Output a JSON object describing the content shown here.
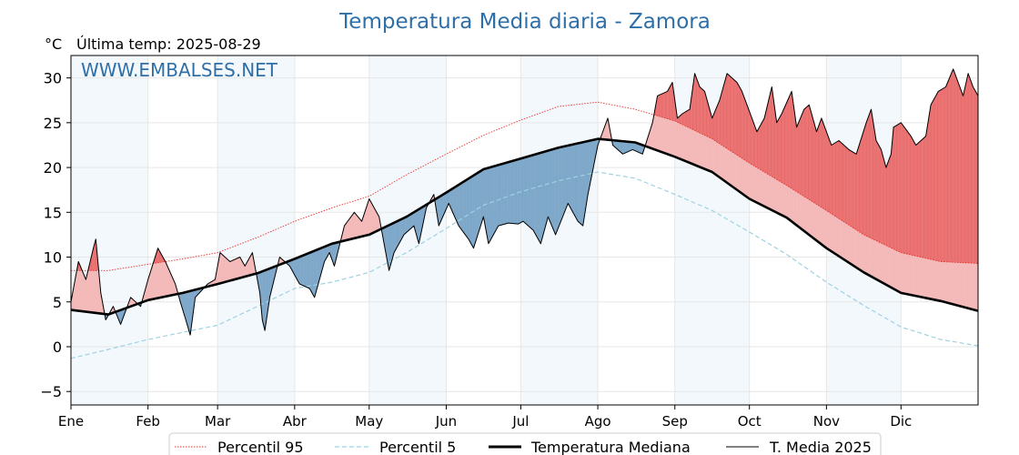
{
  "chart_data": {
    "type": "line",
    "title": "Temperatura Media diaria - Zamora",
    "unit_label": "°C",
    "last_temp_label": "Última temp: 2025-08-29",
    "watermark": "WWW.EMBALSES.NET",
    "x_axis": {
      "range_days": [
        0,
        365
      ],
      "months": [
        "Ene",
        "Feb",
        "Mar",
        "Abr",
        "May",
        "Jun",
        "Jul",
        "Ago",
        "Sep",
        "Oct",
        "Nov",
        "Dic"
      ],
      "month_start_days": [
        0,
        31,
        59,
        90,
        120,
        151,
        181,
        212,
        243,
        273,
        304,
        334
      ]
    },
    "y_axis": {
      "range": [
        -6.5,
        32.5
      ],
      "ticks": [
        "−5",
        "0",
        "5",
        "10",
        "15",
        "20",
        "25",
        "30"
      ],
      "tick_values": [
        -5,
        0,
        5,
        10,
        15,
        20,
        25,
        30
      ]
    },
    "grid": true,
    "legend_placement": "bottom-center",
    "series": [
      {
        "name": "Percentil 95",
        "color": "#e8312a",
        "style": "dotted",
        "points": [
          [
            0,
            8.5
          ],
          [
            15,
            8.5
          ],
          [
            31,
            9.2
          ],
          [
            45,
            9.8
          ],
          [
            59,
            10.5
          ],
          [
            75,
            12.2
          ],
          [
            90,
            14.0
          ],
          [
            105,
            15.5
          ],
          [
            120,
            16.8
          ],
          [
            135,
            19.2
          ],
          [
            151,
            21.5
          ],
          [
            166,
            23.6
          ],
          [
            181,
            25.3
          ],
          [
            196,
            26.8
          ],
          [
            212,
            27.3
          ],
          [
            227,
            26.5
          ],
          [
            243,
            25.2
          ],
          [
            258,
            23.2
          ],
          [
            273,
            20.5
          ],
          [
            288,
            18.0
          ],
          [
            304,
            15.2
          ],
          [
            319,
            12.5
          ],
          [
            334,
            10.5
          ],
          [
            350,
            9.5
          ],
          [
            365,
            9.3
          ]
        ]
      },
      {
        "name": "Percentil 5",
        "color": "#9dd2e1",
        "style": "dashed",
        "points": [
          [
            0,
            -1.3
          ],
          [
            15,
            -0.3
          ],
          [
            31,
            0.8
          ],
          [
            45,
            1.6
          ],
          [
            59,
            2.4
          ],
          [
            75,
            4.5
          ],
          [
            90,
            6.5
          ],
          [
            105,
            7.2
          ],
          [
            120,
            8.3
          ],
          [
            135,
            10.5
          ],
          [
            151,
            13.2
          ],
          [
            166,
            15.8
          ],
          [
            181,
            17.3
          ],
          [
            196,
            18.5
          ],
          [
            212,
            19.5
          ],
          [
            227,
            18.8
          ],
          [
            243,
            17.0
          ],
          [
            258,
            15.2
          ],
          [
            273,
            12.8
          ],
          [
            288,
            10.3
          ],
          [
            304,
            7.2
          ],
          [
            319,
            4.6
          ],
          [
            334,
            2.2
          ],
          [
            350,
            0.8
          ],
          [
            365,
            0.1
          ]
        ]
      },
      {
        "name": "Temperatura Mediana",
        "color": "#000000",
        "style": "solid-thick",
        "points": [
          [
            0,
            4.1
          ],
          [
            15,
            3.6
          ],
          [
            31,
            5.2
          ],
          [
            45,
            6.0
          ],
          [
            59,
            7.0
          ],
          [
            75,
            8.2
          ],
          [
            90,
            9.8
          ],
          [
            105,
            11.5
          ],
          [
            120,
            12.5
          ],
          [
            135,
            14.5
          ],
          [
            151,
            17.2
          ],
          [
            166,
            19.8
          ],
          [
            181,
            21.0
          ],
          [
            196,
            22.2
          ],
          [
            212,
            23.2
          ],
          [
            227,
            22.8
          ],
          [
            243,
            21.2
          ],
          [
            258,
            19.5
          ],
          [
            273,
            16.5
          ],
          [
            288,
            14.4
          ],
          [
            304,
            11.0
          ],
          [
            319,
            8.3
          ],
          [
            334,
            6.0
          ],
          [
            350,
            5.1
          ],
          [
            365,
            4.0
          ]
        ]
      },
      {
        "name": "T. Media 2025",
        "color": "#000000",
        "style": "solid-thin",
        "points": [
          [
            0,
            5.0
          ],
          [
            3,
            9.5
          ],
          [
            6,
            7.5
          ],
          [
            9,
            11.0
          ],
          [
            10,
            12.0
          ],
          [
            12,
            6.0
          ],
          [
            14,
            3.0
          ],
          [
            17,
            4.5
          ],
          [
            20,
            2.5
          ],
          [
            24,
            5.5
          ],
          [
            28,
            4.5
          ],
          [
            31,
            7.5
          ],
          [
            35,
            11.0
          ],
          [
            38,
            9.5
          ],
          [
            42,
            7.0
          ],
          [
            44,
            5.0
          ],
          [
            46,
            3.2
          ],
          [
            48,
            1.3
          ],
          [
            50,
            5.5
          ],
          [
            55,
            7.0
          ],
          [
            58,
            7.5
          ],
          [
            60,
            10.5
          ],
          [
            64,
            9.5
          ],
          [
            68,
            10.0
          ],
          [
            70,
            9.0
          ],
          [
            73,
            10.5
          ],
          [
            76,
            6.0
          ],
          [
            77,
            3.0
          ],
          [
            78,
            1.8
          ],
          [
            80,
            5.5
          ],
          [
            84,
            10.0
          ],
          [
            88,
            9.0
          ],
          [
            92,
            7.0
          ],
          [
            96,
            6.5
          ],
          [
            98,
            5.5
          ],
          [
            102,
            9.5
          ],
          [
            104,
            10.5
          ],
          [
            106,
            9.0
          ],
          [
            110,
            13.5
          ],
          [
            114,
            15.0
          ],
          [
            117,
            14.0
          ],
          [
            120,
            16.5
          ],
          [
            124,
            14.5
          ],
          [
            128,
            8.5
          ],
          [
            130,
            10.5
          ],
          [
            134,
            12.5
          ],
          [
            138,
            13.5
          ],
          [
            140,
            11.5
          ],
          [
            143,
            15.5
          ],
          [
            146,
            17.0
          ],
          [
            148,
            13.5
          ],
          [
            152,
            16.0
          ],
          [
            156,
            13.5
          ],
          [
            160,
            12.0
          ],
          [
            162,
            11.0
          ],
          [
            166,
            14.5
          ],
          [
            168,
            11.5
          ],
          [
            172,
            13.5
          ],
          [
            176,
            13.8
          ],
          [
            180,
            13.7
          ],
          [
            182,
            14.0
          ],
          [
            186,
            13.0
          ],
          [
            189,
            11.5
          ],
          [
            192,
            14.5
          ],
          [
            195,
            12.5
          ],
          [
            200,
            16.0
          ],
          [
            204,
            14.0
          ],
          [
            206,
            13.5
          ],
          [
            208,
            17.0
          ],
          [
            212,
            22.5
          ],
          [
            216,
            25.5
          ],
          [
            218,
            22.5
          ],
          [
            222,
            21.5
          ],
          [
            226,
            22.0
          ],
          [
            230,
            21.5
          ],
          [
            234,
            25.0
          ],
          [
            236,
            28.0
          ],
          [
            240,
            28.5
          ],
          [
            242,
            29.5
          ],
          [
            244,
            25.5
          ],
          [
            246,
            26.0
          ],
          [
            249,
            26.5
          ],
          [
            251,
            30.5
          ],
          [
            253,
            29.0
          ],
          [
            255,
            28.5
          ],
          [
            258,
            25.5
          ],
          [
            261,
            27.5
          ],
          [
            264,
            30.5
          ],
          [
            268,
            29.5
          ],
          [
            270,
            28.5
          ],
          [
            272,
            27.0
          ],
          [
            276,
            24.0
          ],
          [
            279,
            25.5
          ],
          [
            282,
            29.0
          ],
          [
            284,
            25.0
          ],
          [
            286,
            26.0
          ],
          [
            290,
            28.5
          ],
          [
            292,
            24.5
          ],
          [
            295,
            26.5
          ],
          [
            297,
            27.0
          ],
          [
            300,
            24.0
          ],
          [
            302,
            25.5
          ],
          [
            306,
            22.5
          ],
          [
            309,
            23.0
          ],
          [
            313,
            22.0
          ],
          [
            316,
            21.5
          ],
          [
            320,
            25.0
          ],
          [
            322,
            26.5
          ],
          [
            324,
            23.0
          ],
          [
            326,
            22.0
          ],
          [
            328,
            20.0
          ],
          [
            330,
            21.5
          ],
          [
            331,
            24.5
          ],
          [
            334,
            25.0
          ],
          [
            338,
            23.5
          ],
          [
            340,
            22.5
          ],
          [
            344,
            23.5
          ],
          [
            346,
            27.0
          ],
          [
            349,
            28.5
          ],
          [
            352,
            29.0
          ],
          [
            355,
            31.0
          ],
          [
            357,
            29.5
          ],
          [
            359,
            28.0
          ],
          [
            361,
            30.5
          ],
          [
            363,
            29.0
          ],
          [
            365,
            28.0
          ]
        ]
      }
    ]
  },
  "legend": {
    "p95": "Percentil 95",
    "p5": "Percentil 5",
    "median": "Temperatura Mediana",
    "t2025": "T. Media 2025"
  }
}
